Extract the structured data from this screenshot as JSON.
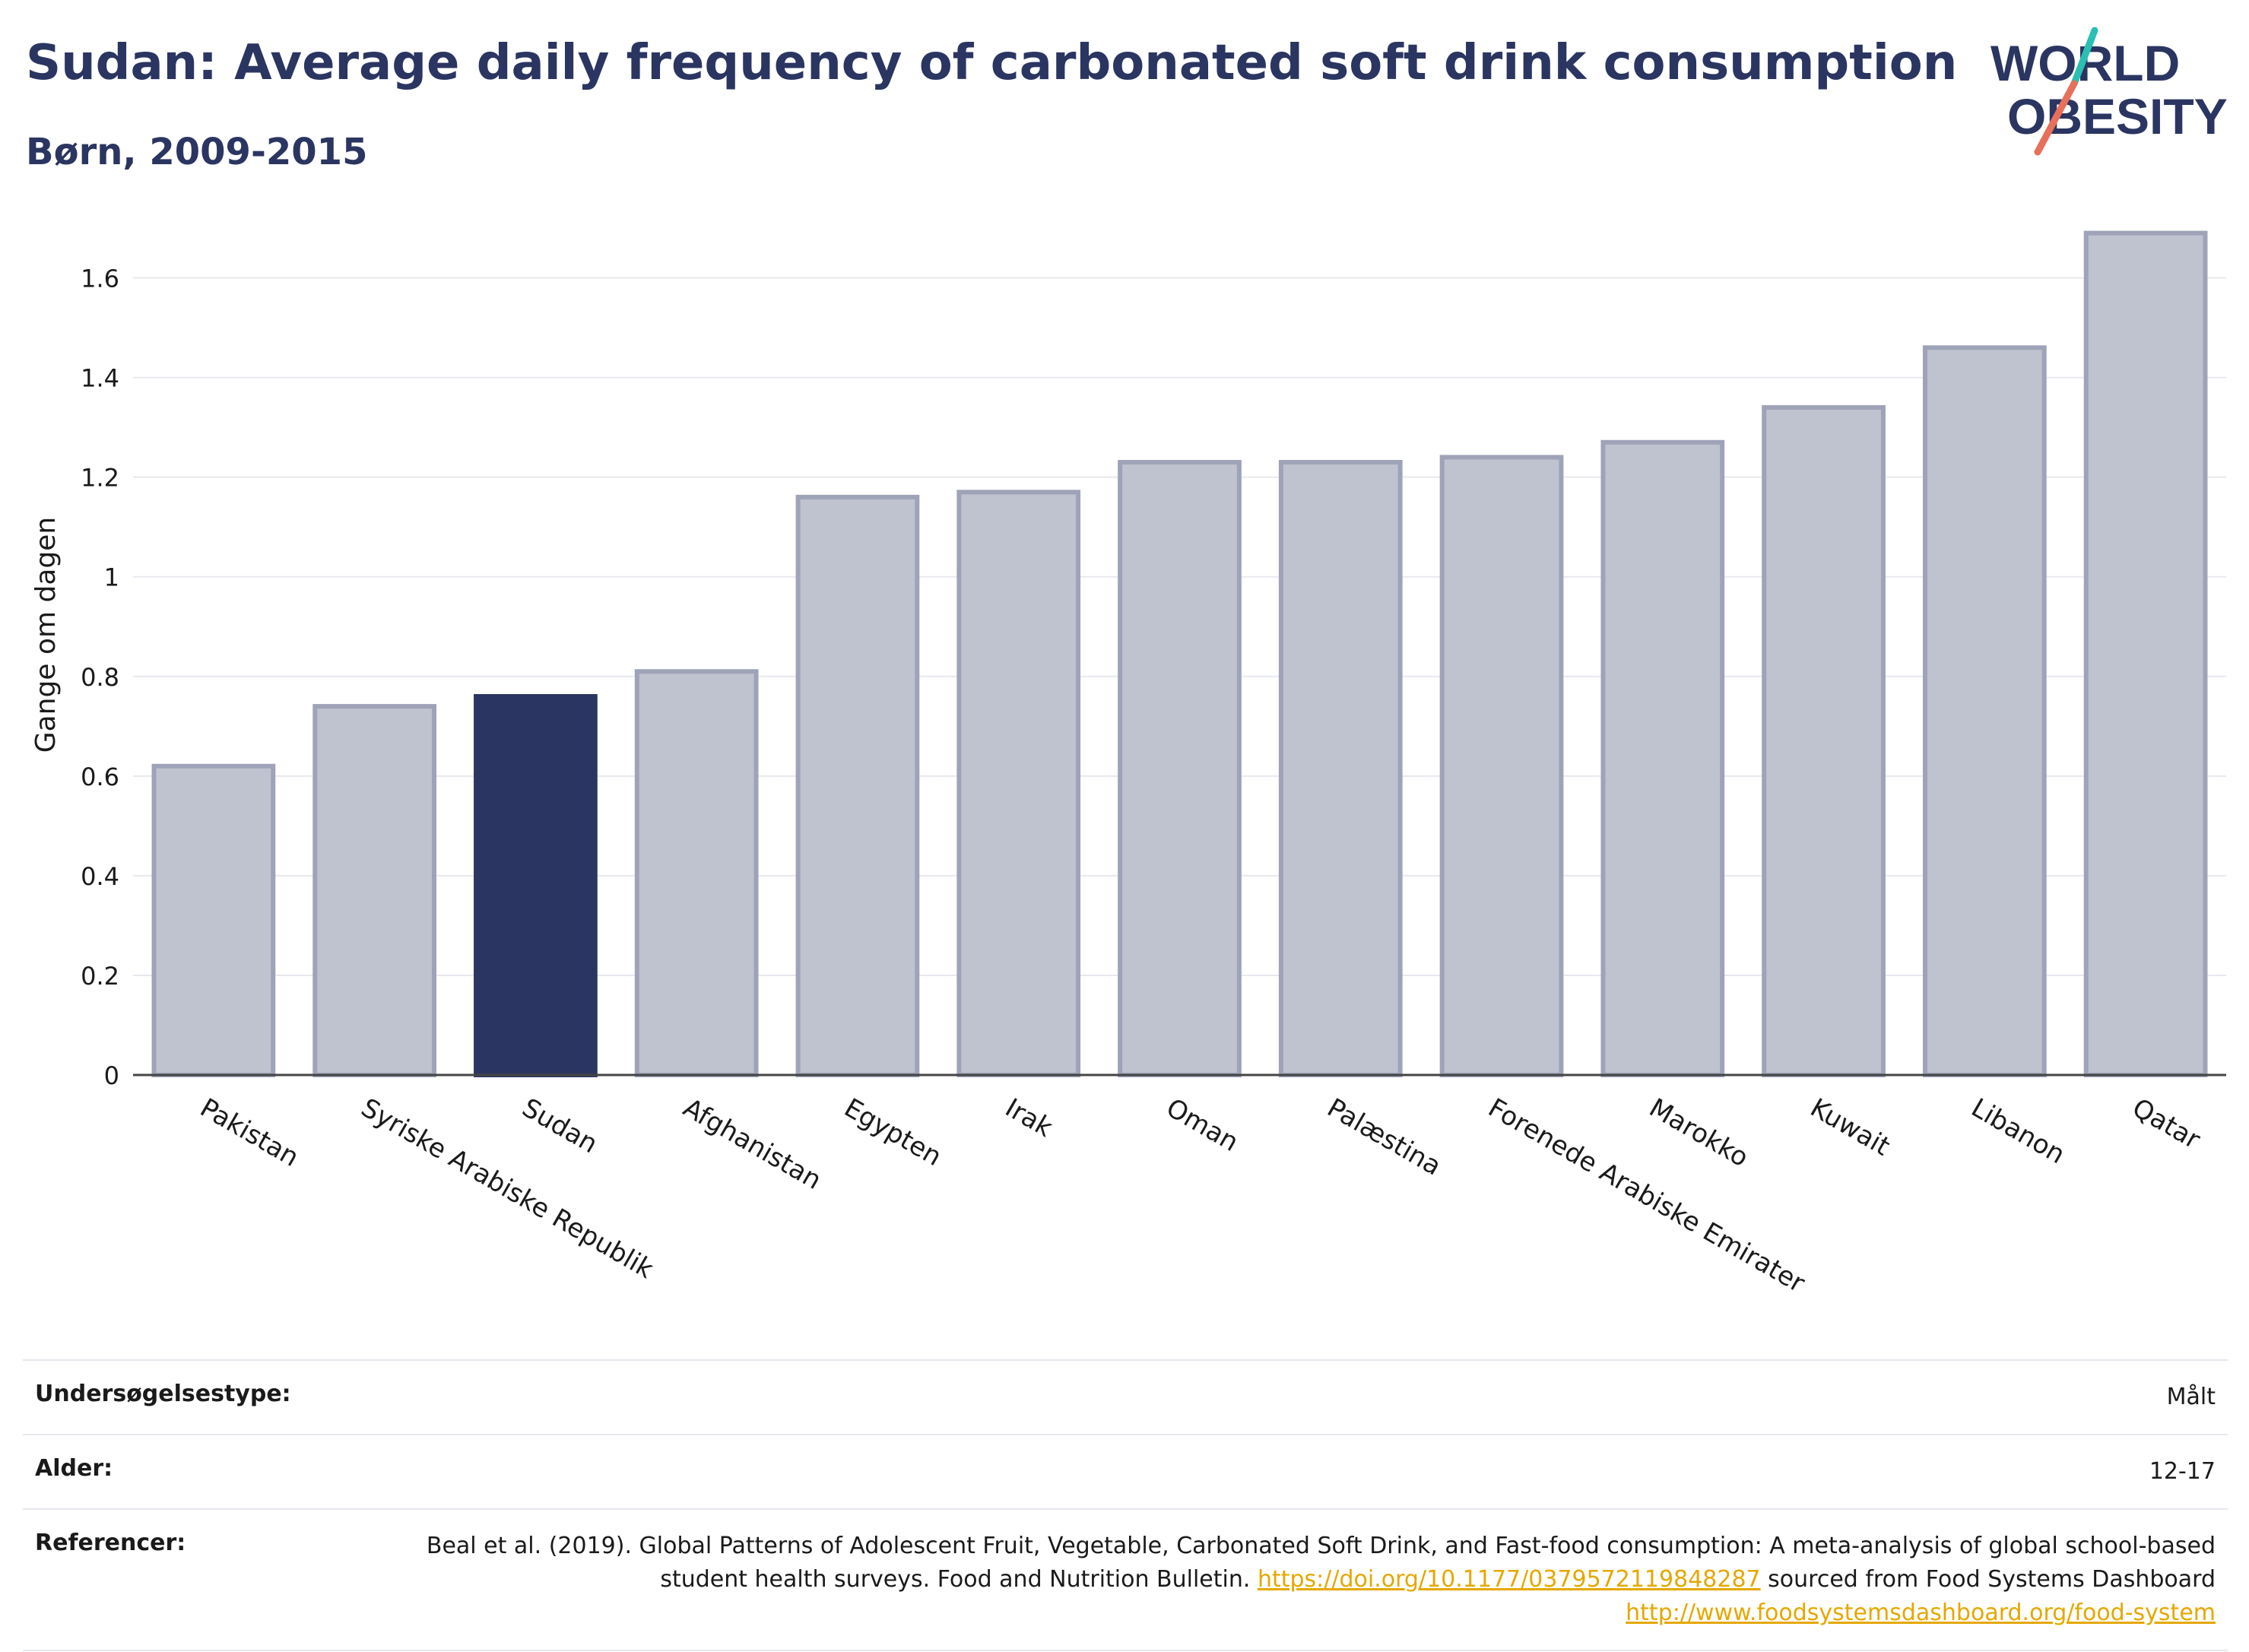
{
  "header": {
    "title": "Sudan: Average daily frequency of carbonated soft drink consumption",
    "subtitle": "Børn, 2009-2015"
  },
  "logo": {
    "line1": "WORLD",
    "line2": "OBESITY",
    "accent_colors": [
      "#2bbfb4",
      "#e8705a"
    ]
  },
  "chart_data": {
    "type": "bar",
    "title": "Sudan: Average daily frequency of carbonated soft drink consumption",
    "subtitle": "Børn, 2009-2015",
    "xlabel": "",
    "ylabel": "Gange om dagen",
    "ylim": [
      0,
      1.7
    ],
    "yticks": [
      0,
      0.2,
      0.4,
      0.6,
      0.8,
      1,
      1.2,
      1.4,
      1.6
    ],
    "ytick_labels": [
      "0",
      "0.2",
      "0.4",
      "0.6",
      "0.8",
      "1",
      "1.2",
      "1.4",
      "1.6"
    ],
    "grid": true,
    "highlight": "Sudan",
    "highlight_color": "#2b3561",
    "bar_color": "#bfc2cf",
    "bar_edge_color": "#9ea3b8",
    "categories": [
      "Pakistan",
      "Syriske Arabiske Republik",
      "Sudan",
      "Afghanistan",
      "Egypten",
      "Irak",
      "Oman",
      "Palæstina",
      "Forenede Arabiske Emirater",
      "Marokko",
      "Kuwait",
      "Libanon",
      "Qatar"
    ],
    "values": [
      0.62,
      0.74,
      0.76,
      0.81,
      1.16,
      1.17,
      1.23,
      1.23,
      1.24,
      1.27,
      1.34,
      1.46,
      1.69
    ]
  },
  "info": {
    "rows": [
      {
        "label": "Undersøgelsestype:",
        "value": "Målt"
      },
      {
        "label": "Alder:",
        "value": "12-17"
      }
    ],
    "references": {
      "label": "Referencer:",
      "text1": "Beal et al. (2019). Global Patterns of Adolescent Fruit, Vegetable, Carbonated Soft Drink, and Fast-food consumption: A meta-analysis of global school-based student health surveys. Food and Nutrition Bulletin.",
      "link1": "https://doi.org/10.1177/0379572119848287",
      "text2": "sourced from Food Systems Dashboard",
      "link2": "http://www.foodsystemsdashboard.org/food-system"
    }
  }
}
